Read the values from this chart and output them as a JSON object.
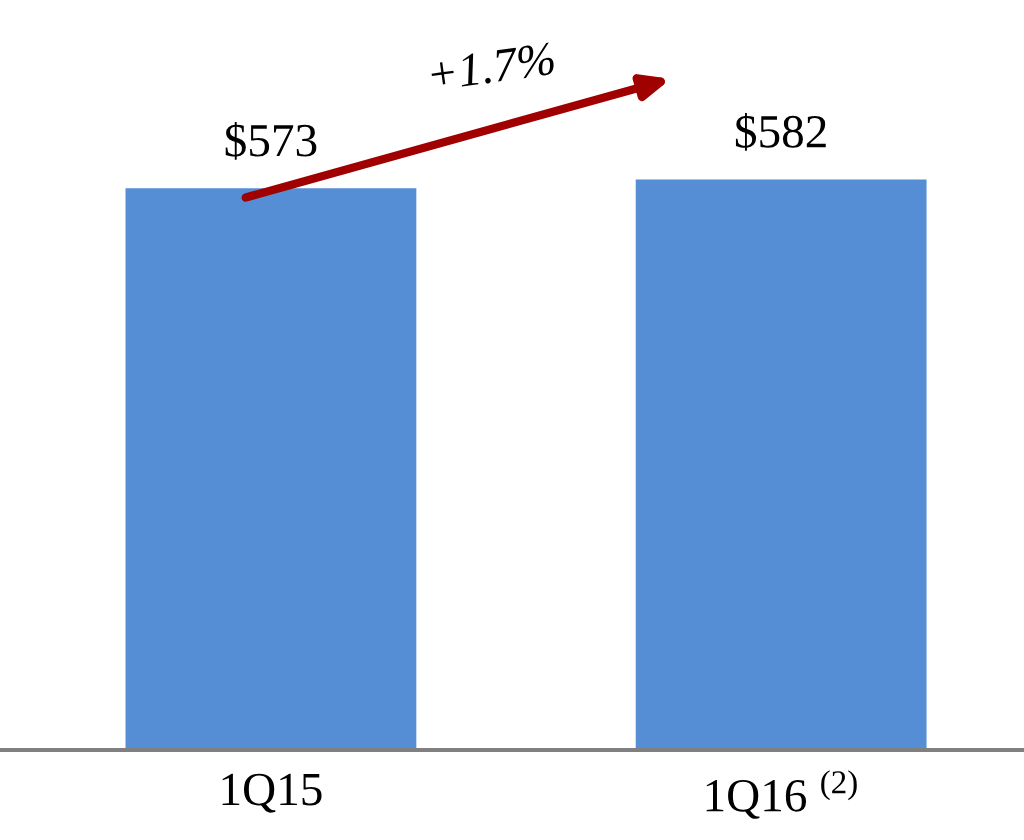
{
  "chart_data": {
    "type": "bar",
    "categories": [
      "1Q15",
      "1Q16 $^{(2)}$"
    ],
    "values": [
      573,
      582
    ],
    "color": "#558ed5",
    "data_labels": true,
    "value_labels": [
      "$573",
      "$582"
    ],
    "tick_labels": "x",
    "grid": false,
    "legend": false,
    "annotations": [
      "+1.7%"
    ]
  }
}
